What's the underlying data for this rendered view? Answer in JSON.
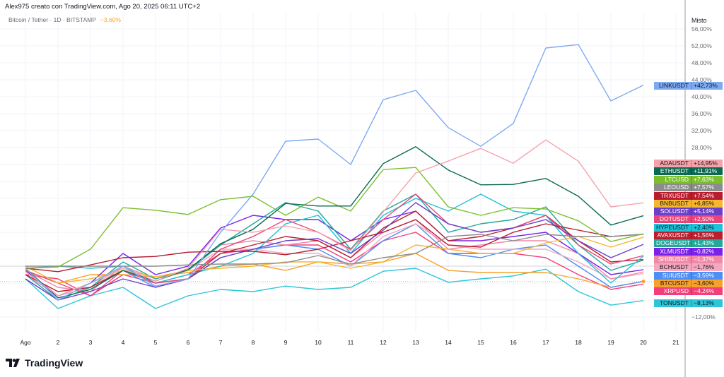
{
  "header": {
    "created_by": "Alex975 creato con TradingView.com, Ago 20, 2025 06:11 UTC+2",
    "symbol": "Bitcoin / Tether · 1D · BITSTAMP",
    "symbol_change": "−3,60%",
    "symbol_change_color": "#f7a12c"
  },
  "axis": {
    "scale_mode": "Misto",
    "y_ticks_visible": [
      "56,00%",
      "52,00%",
      "48,00%",
      "44,00%",
      "40,00%",
      "36,00%",
      "32,00%",
      "28,00%",
      "−12,00%"
    ],
    "x_ticks": [
      "Ago",
      "2",
      "3",
      "4",
      "5",
      "6",
      "7",
      "8",
      "9",
      "10",
      "11",
      "12",
      "13",
      "14",
      "15",
      "16",
      "17",
      "18",
      "19",
      "20",
      "21"
    ]
  },
  "branding": {
    "logo_text": "TradingView"
  },
  "chart_data": {
    "type": "line",
    "title": "",
    "xlabel": "",
    "ylabel": "",
    "x": [
      1,
      2,
      3,
      4,
      5,
      6,
      7,
      8,
      9,
      10,
      11,
      12,
      13,
      14,
      15,
      16,
      17,
      18,
      19,
      20
    ],
    "x_unit": "day of August 2025",
    "ylim": [
      -16,
      58
    ],
    "y_unit": "percent change",
    "grid": true,
    "legend": "right price-axis labels",
    "series": [
      {
        "name": "LINKUSDT",
        "last": "+42,73%",
        "color": "#7eaaf2",
        "text": "#131722",
        "values": [
          -0.5,
          -8,
          -4,
          0,
          -4.7,
          -3,
          8,
          17,
          29.5,
          30,
          24,
          39.3,
          41.5,
          32.7,
          28.3,
          33.7,
          51.5,
          52.3,
          39,
          42.73
        ]
      },
      {
        "name": "ADAUSDT",
        "last": "+14,95%",
        "color": "#f4a3aa",
        "text": "#131722",
        "values": [
          -1.3,
          -7,
          -4,
          -0.5,
          -3.5,
          -0.5,
          8.7,
          8,
          9.5,
          8,
          3.7,
          12.8,
          22,
          24.8,
          27.8,
          24.3,
          29.8,
          24.8,
          14,
          14.95
        ]
      },
      {
        "name": "ETHUSDT",
        "last": "+11,91%",
        "color": "#0b6a52",
        "text": "#ffffff",
        "values": [
          -0.5,
          -7.5,
          -5.5,
          -1,
          -3.5,
          -0.8,
          5.3,
          8.7,
          14.8,
          14.2,
          14.2,
          24.2,
          28.2,
          22.7,
          19.2,
          19.3,
          20.7,
          16.5,
          9.7,
          11.91
        ]
      },
      {
        "name": "LTCUSD",
        "last": "+7,63%",
        "color": "#7cbf2e",
        "text": "#ffffff",
        "values": [
          -0.5,
          -0.2,
          4,
          13.8,
          13.2,
          12.2,
          15.7,
          16.5,
          12,
          16.3,
          13,
          22.8,
          23.3,
          14,
          12,
          13.8,
          13.5,
          10.7,
          5.8,
          7.63
        ]
      },
      {
        "name": "LEOUSD",
        "last": "+7,57%",
        "color": "#8c8c8c",
        "text": "#ffffff",
        "values": [
          0,
          0,
          0,
          0,
          0,
          0.3,
          0.5,
          0.5,
          0.8,
          2.5,
          0.5,
          2,
          3,
          7,
          7.5,
          6,
          7.5,
          7,
          7,
          7.57
        ]
      },
      {
        "name": "TRXUSDT",
        "last": "+7,54%",
        "color": "#b71c2f",
        "text": "#ffffff",
        "values": [
          -0.5,
          -1.3,
          0.3,
          2,
          2.3,
          3.3,
          3.5,
          3.5,
          2.7,
          4,
          6,
          8,
          11,
          5,
          4.5,
          8,
          10,
          8.5,
          7,
          7.54
        ]
      },
      {
        "name": "BNBUSDT",
        "last": "+6,85%",
        "color": "#f5b731",
        "text": "#131722",
        "values": [
          0,
          -4,
          -3,
          -1,
          -2.5,
          -1,
          -0.5,
          0,
          1,
          1,
          -0.5,
          1,
          5,
          4,
          3,
          3,
          5.5,
          7,
          4.5,
          6.85
        ]
      },
      {
        "name": "SOLUSDT",
        "last": "+5,14%",
        "color": "#6b3fc9",
        "text": "#ffffff",
        "values": [
          -3,
          -8,
          -6,
          -3,
          -5,
          -3,
          2,
          4,
          6,
          6.5,
          3,
          8.5,
          15,
          10,
          8,
          9,
          11,
          6,
          2,
          5.14
        ]
      },
      {
        "name": "DOTUSDT",
        "last": "+2,50%",
        "color": "#e8467a",
        "text": "#ffffff",
        "values": [
          -1,
          -4,
          -7,
          -1,
          -4,
          -3,
          4,
          7,
          11,
          8,
          4,
          11,
          17,
          10,
          8,
          9,
          12,
          5,
          0.5,
          2.5
        ]
      },
      {
        "name": "HYPEUSDT",
        "last": "+2,40%",
        "color": "#21c2d6",
        "text": "#131722",
        "values": [
          -0.5,
          0,
          -0.5,
          0,
          -4,
          -2,
          0,
          3,
          10,
          12,
          3,
          12,
          16,
          13,
          17,
          13,
          12,
          3,
          -4,
          2.4
        ]
      },
      {
        "name": "AVAXUSDT",
        "last": "+1,56%",
        "color": "#b8202f",
        "text": "#ffffff",
        "values": [
          -2,
          -6,
          -5,
          -1,
          -4,
          -3,
          3,
          5,
          7,
          6,
          2,
          9,
          13,
          6,
          7,
          9,
          12,
          6,
          1,
          1.56
        ]
      },
      {
        "name": "DOGEUSDT",
        "last": "+1,43%",
        "color": "#22a99a",
        "text": "#ffffff",
        "values": [
          -2,
          -8,
          -5,
          1,
          -3,
          -1,
          5,
          10,
          15,
          13,
          4,
          13,
          17,
          8,
          10,
          11,
          14,
          5,
          -1,
          1.43
        ]
      },
      {
        "name": "XLMUSDT",
        "last": "−0,82%",
        "color": "#7a22ea",
        "text": "#ffffff",
        "values": [
          -1,
          -7,
          -4,
          3,
          -2,
          0,
          9,
          12,
          11,
          11,
          6,
          11,
          13,
          6,
          6,
          7,
          8,
          3,
          -2,
          -0.82
        ]
      },
      {
        "name": "SHIBUSDT",
        "last": "−1,37%",
        "color": "#f08aa8",
        "text": "#ffffff",
        "values": [
          -1,
          -5,
          -6,
          0,
          -3,
          -1,
          5,
          6,
          5,
          6,
          2,
          8,
          11,
          4,
          5,
          6,
          6,
          3,
          -3,
          -1.37
        ]
      },
      {
        "name": "BCHUSDT",
        "last": "−1,76%",
        "color": "#f4a8c0",
        "text": "#131722",
        "values": [
          -2,
          -7,
          -5,
          0,
          -3,
          -1,
          4,
          4,
          3,
          3,
          0,
          7,
          10,
          5,
          4,
          4,
          4,
          1,
          -3,
          -1.76
        ]
      },
      {
        "name": "SUIUSDT",
        "last": "−3,59%",
        "color": "#4d8ff5",
        "text": "#ffffff",
        "values": [
          -2,
          -7,
          -5,
          -1,
          -5,
          -3,
          2,
          4,
          5,
          4,
          0,
          6,
          10,
          3,
          2,
          4,
          5,
          0,
          -5,
          -3.59
        ]
      },
      {
        "name": "BTCUSDT",
        "last": "−3,60%",
        "color": "#f7a12c",
        "text": "#131722",
        "values": [
          -1,
          -4,
          -2,
          -2,
          -2.5,
          -1.5,
          0,
          0.5,
          -1,
          1,
          0.5,
          1,
          3,
          -1,
          -1.5,
          -1.5,
          -1.5,
          -3,
          -5,
          -3.6
        ]
      },
      {
        "name": "XRPUSD",
        "last": "−4,24%",
        "color": "#f23e7a",
        "text": "#ffffff",
        "values": [
          -2,
          -3,
          -7,
          -2,
          -4,
          -2,
          3,
          4,
          5,
          5,
          1,
          6,
          8,
          3,
          3,
          3,
          2,
          -2,
          -5.5,
          -4.24
        ]
      },
      {
        "name": "TONUSDT",
        "last": "−8,13%",
        "color": "#2ec5d9",
        "text": "#131722",
        "values": [
          -3,
          -10,
          -7,
          -5,
          -10,
          -7,
          -5.5,
          -6,
          -4.7,
          -5.5,
          -5,
          -1.2,
          -0.5,
          -3.8,
          -3,
          -2.3,
          -0.7,
          -6,
          -9.2,
          -8.13
        ]
      }
    ]
  }
}
